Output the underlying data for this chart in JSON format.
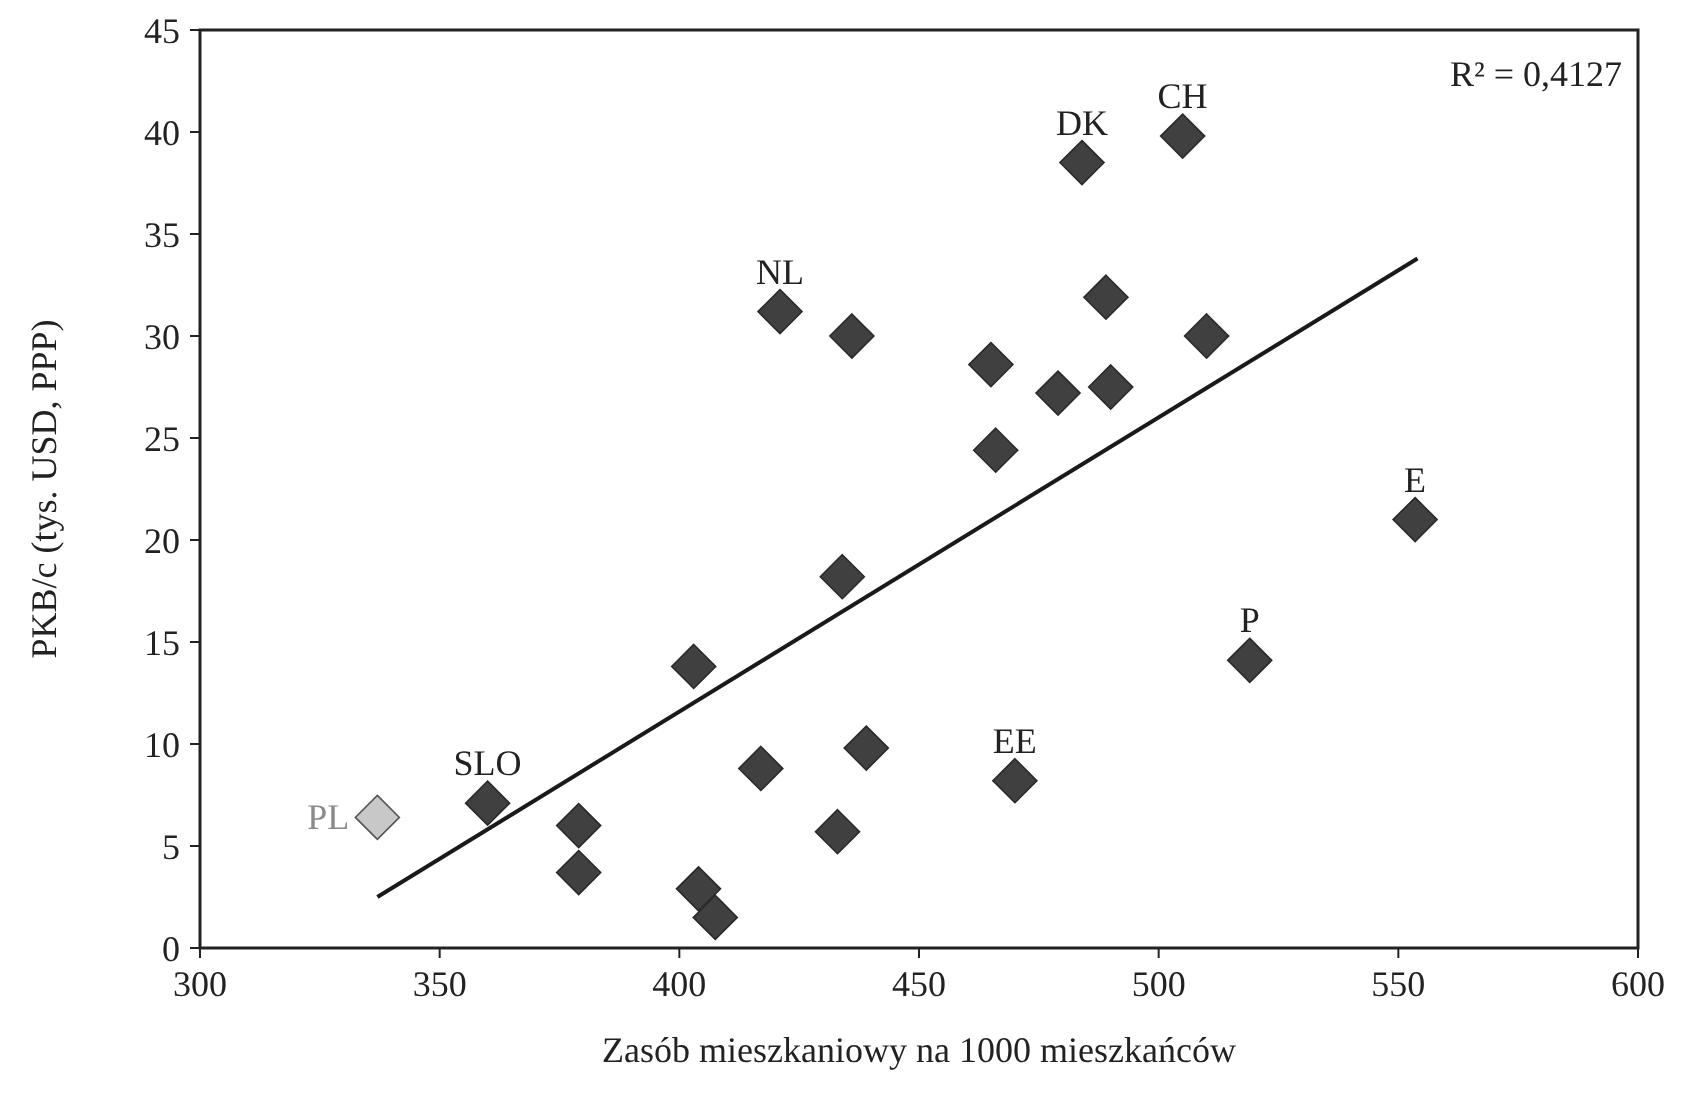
{
  "chart_data": {
    "type": "scatter",
    "xlabel": "Zasób mieszkaniowy na 1000 mieszkańców",
    "ylabel": "PKB/c (tys. USD, PPP)",
    "xlim": [
      300,
      600
    ],
    "xticks": [
      300,
      350,
      400,
      450,
      500,
      550,
      600
    ],
    "ylim": [
      0,
      45
    ],
    "yticks": [
      0,
      5,
      10,
      15,
      20,
      25,
      30,
      35,
      40,
      45
    ],
    "grid": false,
    "marker": "diamond",
    "series": [
      {
        "x": [
          337,
          360,
          379,
          379,
          403,
          404,
          407.5,
          417,
          433,
          434,
          439,
          470,
          519,
          553.5,
          421,
          436,
          484,
          505,
          489,
          510,
          465,
          479,
          490,
          466
        ],
        "values": [
          6.4,
          7.1,
          6.0,
          3.7,
          13.8,
          2.9,
          1.5,
          8.8,
          5.7,
          18.2,
          9.8,
          8.2,
          14.1,
          21.0,
          31.2,
          30.0,
          38.5,
          39.8,
          31.9,
          30.0,
          28.6,
          27.2,
          27.5,
          24.4
        ],
        "colors": [
          "#c8c8c8",
          "#404040",
          "#404040",
          "#404040",
          "#404040",
          "#404040",
          "#404040",
          "#404040",
          "#404040",
          "#404040",
          "#404040",
          "#404040",
          "#404040",
          "#404040",
          "#404040",
          "#404040",
          "#404040",
          "#404040",
          "#404040",
          "#404040",
          "#404040",
          "#404040",
          "#404040",
          "#404040"
        ]
      },
      {
        "type": "line",
        "x": [
          337,
          554
        ],
        "values": [
          2.5,
          33.8
        ],
        "color": "#1a1a1a",
        "marker": "none",
        "line_style": "solid"
      }
    ],
    "annotations": [
      {
        "text": "PL",
        "x": 337,
        "y": 6.4
      },
      {
        "text": "SLO",
        "x": 360,
        "y": 7.1
      },
      {
        "text": "EE",
        "x": 470,
        "y": 8.2
      },
      {
        "text": "P",
        "x": 519,
        "y": 14.1
      },
      {
        "text": "E",
        "x": 553.5,
        "y": 21.0
      },
      {
        "text": "NL",
        "x": 421,
        "y": 31.2
      },
      {
        "text": "DK",
        "x": 484,
        "y": 38.5
      },
      {
        "text": "CH",
        "x": 505,
        "y": 39.8
      },
      "R² = 0,4127"
    ]
  }
}
